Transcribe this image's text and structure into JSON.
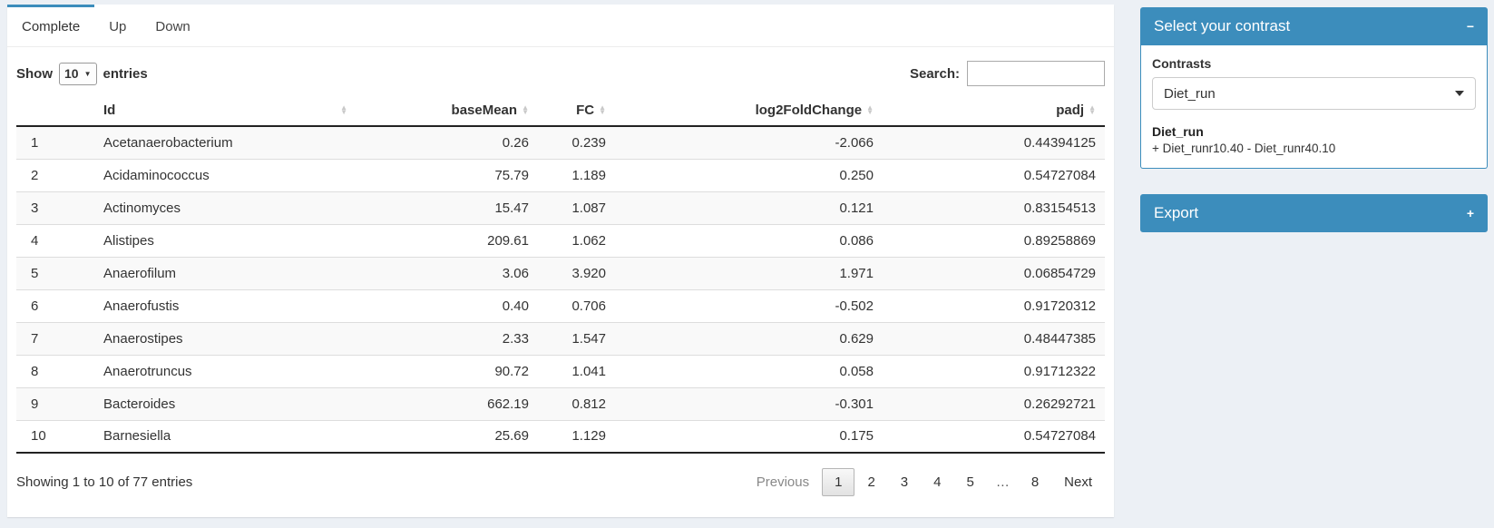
{
  "colors": {
    "accent": "#3c8dbc",
    "page_bg": "#ecf0f5"
  },
  "tabs": {
    "items": [
      {
        "label": "Complete"
      },
      {
        "label": "Up"
      },
      {
        "label": "Down"
      }
    ]
  },
  "controls": {
    "show_label": "Show",
    "page_size": "10",
    "entries_label": "entries",
    "search_label": "Search:",
    "search_value": ""
  },
  "table": {
    "columns": {
      "num": "",
      "id": "Id",
      "basemean": "baseMean",
      "fc": "FC",
      "log2fc": "log2FoldChange",
      "padj": "padj"
    },
    "rows": [
      {
        "num": "1",
        "id": "Acetanaerobacterium",
        "basemean": "0.26",
        "fc": "0.239",
        "log2fc": "-2.066",
        "padj": "0.44394125"
      },
      {
        "num": "2",
        "id": "Acidaminococcus",
        "basemean": "75.79",
        "fc": "1.189",
        "log2fc": "0.250",
        "padj": "0.54727084"
      },
      {
        "num": "3",
        "id": "Actinomyces",
        "basemean": "15.47",
        "fc": "1.087",
        "log2fc": "0.121",
        "padj": "0.83154513"
      },
      {
        "num": "4",
        "id": "Alistipes",
        "basemean": "209.61",
        "fc": "1.062",
        "log2fc": "0.086",
        "padj": "0.89258869"
      },
      {
        "num": "5",
        "id": "Anaerofilum",
        "basemean": "3.06",
        "fc": "3.920",
        "log2fc": "1.971",
        "padj": "0.06854729"
      },
      {
        "num": "6",
        "id": "Anaerofustis",
        "basemean": "0.40",
        "fc": "0.706",
        "log2fc": "-0.502",
        "padj": "0.91720312"
      },
      {
        "num": "7",
        "id": "Anaerostipes",
        "basemean": "2.33",
        "fc": "1.547",
        "log2fc": "0.629",
        "padj": "0.48447385"
      },
      {
        "num": "8",
        "id": "Anaerotruncus",
        "basemean": "90.72",
        "fc": "1.041",
        "log2fc": "0.058",
        "padj": "0.91712322"
      },
      {
        "num": "9",
        "id": "Bacteroides",
        "basemean": "662.19",
        "fc": "0.812",
        "log2fc": "-0.301",
        "padj": "0.26292721"
      },
      {
        "num": "10",
        "id": "Barnesiella",
        "basemean": "25.69",
        "fc": "1.129",
        "log2fc": "0.175",
        "padj": "0.54727084"
      }
    ]
  },
  "footer": {
    "info": "Showing 1 to 10 of 77 entries",
    "pagination": [
      {
        "label": "Previous",
        "state": "disabled"
      },
      {
        "label": "1",
        "state": "current"
      },
      {
        "label": "2",
        "state": "normal"
      },
      {
        "label": "3",
        "state": "normal"
      },
      {
        "label": "4",
        "state": "normal"
      },
      {
        "label": "5",
        "state": "normal"
      },
      {
        "label": "…",
        "state": "ellipsis"
      },
      {
        "label": "8",
        "state": "normal"
      },
      {
        "label": "Next",
        "state": "normal"
      }
    ]
  },
  "contrast_panel": {
    "title": "Select your contrast",
    "collapse_icon": "−",
    "contrasts_label": "Contrasts",
    "selected_contrast": "Diet_run",
    "detail_title": "Diet_run",
    "detail_formula": "+ Diet_runr10.40 - Diet_runr40.10"
  },
  "export_panel": {
    "title": "Export",
    "expand_icon": "+"
  }
}
